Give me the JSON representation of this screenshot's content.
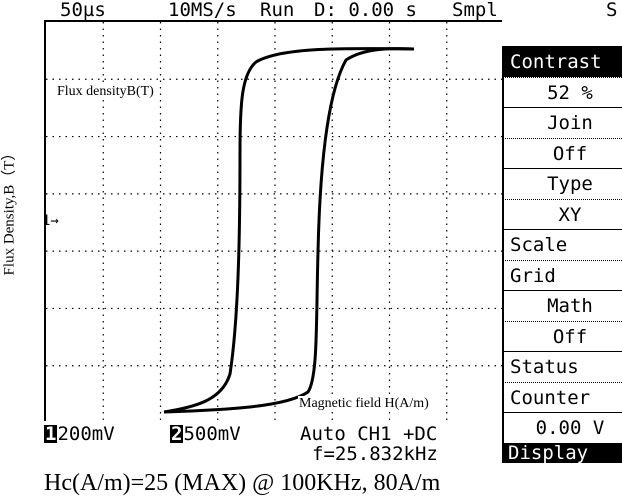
{
  "status_bar": {
    "timebase": "50µs",
    "sample_rate": "10MS/s",
    "run_state": "Run",
    "delay": "D: 0.00 s",
    "acq_mode": "Smpl",
    "trigger_flag": "S"
  },
  "plot": {
    "inner_label": "Flux densityB(T)",
    "axis_label": "Flux Density,B（T）",
    "field_label": "Magnetic field H(A/m)",
    "marker": "1→"
  },
  "menu": {
    "items": [
      {
        "label": "Contrast",
        "style": "inverted"
      },
      {
        "label": "52 %",
        "style": "value"
      },
      {
        "label": "Join",
        "style": "value"
      },
      {
        "label": "Off",
        "style": "value"
      },
      {
        "label": "Type",
        "style": "value"
      },
      {
        "label": "XY",
        "style": "value"
      },
      {
        "label": "Scale",
        "style": "normal"
      },
      {
        "label": "Grid",
        "style": "normal"
      },
      {
        "label": "Math",
        "style": "value"
      },
      {
        "label": "Off",
        "style": "value"
      },
      {
        "label": "Status",
        "style": "normal"
      },
      {
        "label": "Counter",
        "style": "normal"
      },
      {
        "label": "0.00 V",
        "style": "value"
      }
    ],
    "display_label": "Display"
  },
  "bottom": {
    "ch1_badge": "1",
    "ch1_scale": "200mV",
    "ch2_badge": "2",
    "ch2_scale": "500mV",
    "trigger": "Auto CH1 +DC",
    "frequency": "f=25.832kHz"
  },
  "caption": "Hc(A/m)=25  (MAX)   @    100KHz, 80A/m",
  "colors": {
    "trace": "#000000",
    "grid": "#000000",
    "background": "#ffffff"
  }
}
